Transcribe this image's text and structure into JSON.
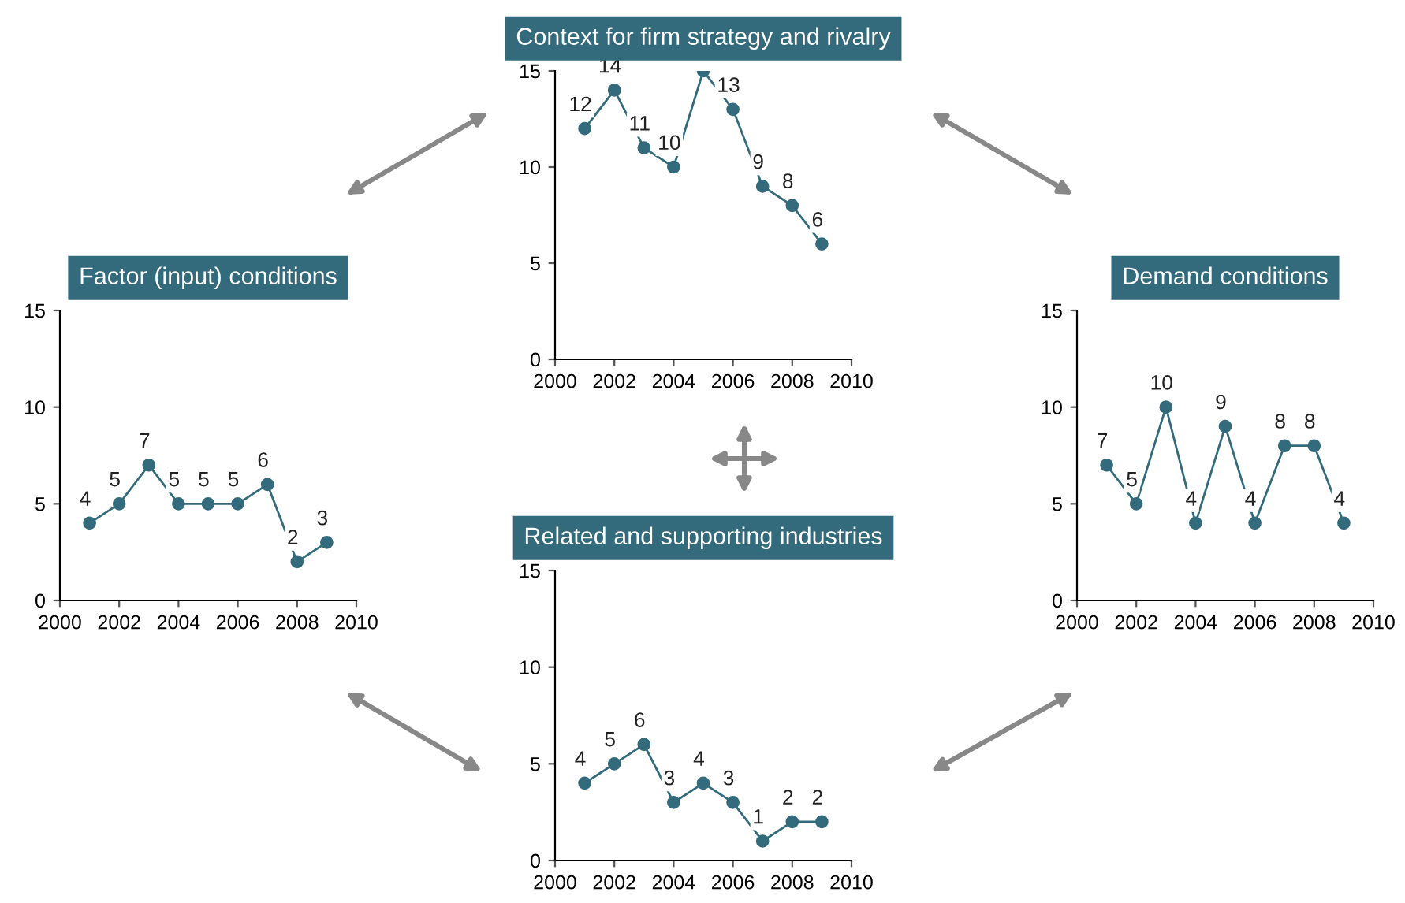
{
  "chart_data": [
    {
      "type": "line",
      "title": "Context for firm strategy and rivalry",
      "x": [
        2001,
        2002,
        2003,
        2004,
        2005,
        2006,
        2007,
        2008,
        2009
      ],
      "series": [
        {
          "color": "#336b7c",
          "values": [
            12,
            14,
            11,
            10,
            15,
            13,
            9,
            8,
            6
          ],
          "value_labels": [
            "12",
            "14",
            "11",
            "10",
            null,
            "13",
            "9",
            "8",
            "6"
          ]
        }
      ],
      "xlim": [
        2000,
        2010
      ],
      "xticks": [
        2000,
        2002,
        2004,
        2006,
        2008,
        2010
      ],
      "ylim": [
        0,
        15
      ],
      "yticks": [
        0,
        5,
        10,
        15
      ],
      "marker": "circle",
      "line_style": "solid",
      "grid": false,
      "legend": false
    },
    {
      "type": "line",
      "title": "Factor (input) conditions",
      "x": [
        2001,
        2002,
        2003,
        2004,
        2005,
        2006,
        2007,
        2008,
        2009
      ],
      "series": [
        {
          "color": "#336b7c",
          "values": [
            4,
            5,
            7,
            5,
            5,
            5,
            6,
            2,
            3
          ]
        }
      ],
      "data_labels": true,
      "xlim": [
        2000,
        2010
      ],
      "xticks": [
        2000,
        2002,
        2004,
        2006,
        2008,
        2010
      ],
      "ylim": [
        0,
        15
      ],
      "yticks": [
        0,
        5,
        10,
        15
      ],
      "marker": "circle",
      "line_style": "solid",
      "grid": false,
      "legend": false
    },
    {
      "type": "line",
      "title": "Demand conditions",
      "x": [
        2001,
        2002,
        2003,
        2004,
        2005,
        2006,
        2007,
        2008,
        2009
      ],
      "series": [
        {
          "color": "#336b7c",
          "values": [
            7,
            5,
            10,
            4,
            9,
            4,
            8,
            8,
            4
          ]
        }
      ],
      "data_labels": true,
      "xlim": [
        2000,
        2010
      ],
      "xticks": [
        2000,
        2002,
        2004,
        2006,
        2008,
        2010
      ],
      "ylim": [
        0,
        15
      ],
      "yticks": [
        0,
        5,
        10,
        15
      ],
      "marker": "circle",
      "line_style": "solid",
      "grid": false,
      "legend": false
    },
    {
      "type": "line",
      "title": "Related and supporting industries",
      "x": [
        2001,
        2002,
        2003,
        2004,
        2005,
        2006,
        2007,
        2008,
        2009
      ],
      "series": [
        {
          "color": "#336b7c",
          "values": [
            4,
            5,
            6,
            3,
            4,
            3,
            1,
            2,
            2
          ]
        }
      ],
      "data_labels": true,
      "xlim": [
        2000,
        2010
      ],
      "xticks": [
        2000,
        2002,
        2004,
        2006,
        2008,
        2010
      ],
      "ylim": [
        0,
        15
      ],
      "yticks": [
        0,
        5,
        10,
        15
      ],
      "marker": "circle",
      "line_style": "solid",
      "grid": false,
      "legend": false
    }
  ]
}
